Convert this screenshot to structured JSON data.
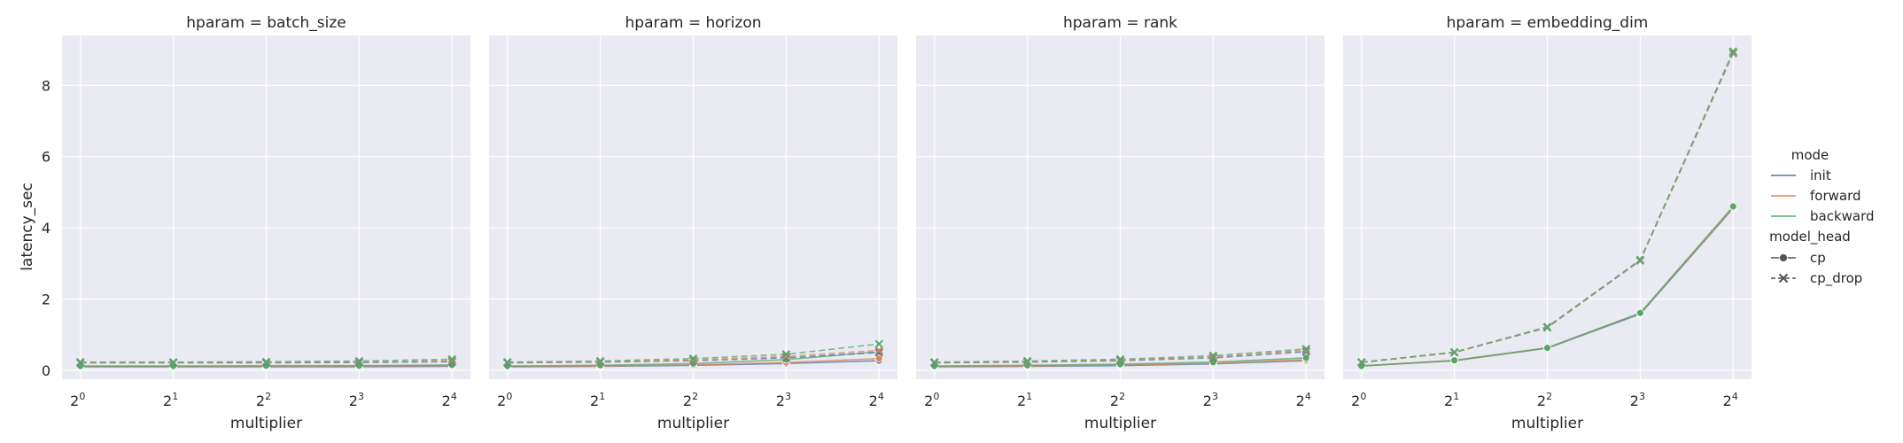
{
  "colors": {
    "init": "#4c72b0",
    "forward": "#dd8452",
    "backward": "#55a868",
    "neutral": "#555555",
    "panel_bg": "#eaeaf2",
    "grid": "#ffffff"
  },
  "legend": {
    "hue_title": "mode",
    "hue_items": [
      {
        "label": "init",
        "color": "#4c72b0"
      },
      {
        "label": "forward",
        "color": "#dd8452"
      },
      {
        "label": "backward",
        "color": "#55a868"
      }
    ],
    "style_title": "model_head",
    "style_items": [
      {
        "label": "cp",
        "marker": "circle",
        "dash": "solid"
      },
      {
        "label": "cp_drop",
        "marker": "x",
        "dash": "dashed"
      }
    ]
  },
  "chart_data": {
    "type": "line",
    "shared_y": true,
    "ylabel": "latency_sec",
    "ylim": [
      -0.25,
      9.4
    ],
    "yticks": [
      "0",
      "2",
      "4",
      "6",
      "8"
    ],
    "xlabel": "multiplier",
    "x": [
      1,
      2,
      4,
      8,
      16
    ],
    "xticks": [
      {
        "base": "2",
        "exp": "0"
      },
      {
        "base": "2",
        "exp": "1"
      },
      {
        "base": "2",
        "exp": "2"
      },
      {
        "base": "2",
        "exp": "3"
      },
      {
        "base": "2",
        "exp": "4"
      }
    ],
    "xscale": "log2",
    "grid": true,
    "legend_position": "right",
    "panels": [
      {
        "title": "hparam = batch_size",
        "series": [
          {
            "mode": "init",
            "model_head": "cp",
            "values": [
              0.1,
              0.1,
              0.1,
              0.1,
              0.11
            ]
          },
          {
            "mode": "forward",
            "model_head": "cp",
            "values": [
              0.11,
              0.11,
              0.11,
              0.12,
              0.13
            ]
          },
          {
            "mode": "backward",
            "model_head": "cp",
            "values": [
              0.12,
              0.12,
              0.13,
              0.13,
              0.15
            ]
          },
          {
            "mode": "init",
            "model_head": "cp_drop",
            "values": [
              0.21,
              0.21,
              0.21,
              0.22,
              0.24
            ]
          },
          {
            "mode": "forward",
            "model_head": "cp_drop",
            "values": [
              0.22,
              0.22,
              0.23,
              0.24,
              0.27
            ]
          },
          {
            "mode": "backward",
            "model_head": "cp_drop",
            "values": [
              0.23,
              0.23,
              0.24,
              0.26,
              0.31
            ]
          }
        ]
      },
      {
        "title": "hparam = horizon",
        "series": [
          {
            "mode": "init",
            "model_head": "cp",
            "values": [
              0.1,
              0.11,
              0.14,
              0.19,
              0.27
            ]
          },
          {
            "mode": "forward",
            "model_head": "cp",
            "values": [
              0.11,
              0.12,
              0.15,
              0.22,
              0.33
            ]
          },
          {
            "mode": "backward",
            "model_head": "cp",
            "values": [
              0.12,
              0.14,
              0.19,
              0.3,
              0.52
            ]
          },
          {
            "mode": "init",
            "model_head": "cp_drop",
            "values": [
              0.21,
              0.23,
              0.27,
              0.35,
              0.5
            ]
          },
          {
            "mode": "forward",
            "model_head": "cp_drop",
            "values": [
              0.22,
              0.24,
              0.29,
              0.39,
              0.56
            ]
          },
          {
            "mode": "backward",
            "model_head": "cp_drop",
            "values": [
              0.23,
              0.26,
              0.33,
              0.45,
              0.74
            ]
          }
        ]
      },
      {
        "title": "hparam = rank",
        "series": [
          {
            "mode": "init",
            "model_head": "cp",
            "values": [
              0.1,
              0.11,
              0.13,
              0.18,
              0.27
            ]
          },
          {
            "mode": "forward",
            "model_head": "cp",
            "values": [
              0.11,
              0.12,
              0.15,
              0.2,
              0.3
            ]
          },
          {
            "mode": "backward",
            "model_head": "cp",
            "values": [
              0.12,
              0.14,
              0.17,
              0.23,
              0.35
            ]
          },
          {
            "mode": "init",
            "model_head": "cp_drop",
            "values": [
              0.21,
              0.23,
              0.27,
              0.35,
              0.52
            ]
          },
          {
            "mode": "forward",
            "model_head": "cp_drop",
            "values": [
              0.22,
              0.24,
              0.29,
              0.38,
              0.56
            ]
          },
          {
            "mode": "backward",
            "model_head": "cp_drop",
            "values": [
              0.23,
              0.26,
              0.31,
              0.41,
              0.6
            ]
          }
        ]
      },
      {
        "title": "hparam = embedding_dim",
        "series": [
          {
            "mode": "init",
            "model_head": "cp",
            "values": [
              0.12,
              0.27,
              0.62,
              1.58,
              4.55
            ]
          },
          {
            "mode": "forward",
            "model_head": "cp",
            "values": [
              0.12,
              0.27,
              0.63,
              1.6,
              4.57
            ]
          },
          {
            "mode": "backward",
            "model_head": "cp",
            "values": [
              0.12,
              0.28,
              0.63,
              1.61,
              4.6
            ]
          },
          {
            "mode": "init",
            "model_head": "cp_drop",
            "values": [
              0.22,
              0.5,
              1.2,
              3.08,
              8.9
            ]
          },
          {
            "mode": "forward",
            "model_head": "cp_drop",
            "values": [
              0.22,
              0.5,
              1.21,
              3.09,
              8.92
            ]
          },
          {
            "mode": "backward",
            "model_head": "cp_drop",
            "values": [
              0.23,
              0.51,
              1.22,
              3.1,
              8.95
            ]
          }
        ]
      }
    ]
  }
}
